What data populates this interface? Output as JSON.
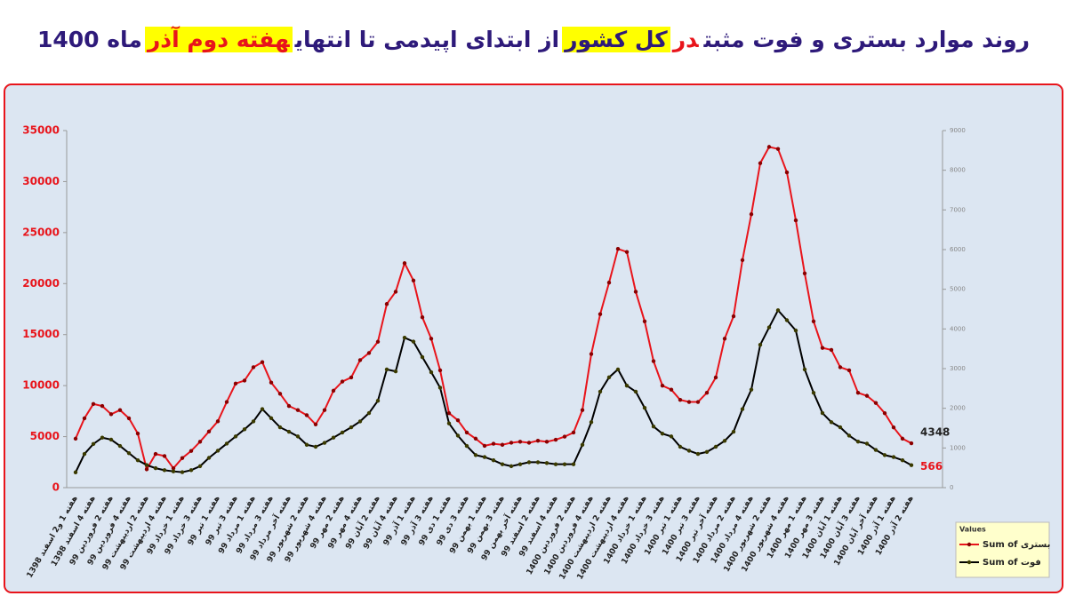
{
  "chart_data": {
    "type": "line",
    "title_parts": [
      "روند موارد بستری و فوت مثبت",
      "در",
      "کل کشور",
      "از ابتدای اپیدمی تا انتهای",
      "هفته دوم آذر",
      "ماه 1400"
    ],
    "categories": [
      "هفته 1 و2 اسفند 1398",
      null,
      "هفته 4 اسفند 1398",
      null,
      "هفته 2 فروردین 99",
      null,
      "هفته 4 فروردین 99",
      null,
      "هفته 2 اردیبهشت 99",
      null,
      "هفته 4 اردیبهشت 99",
      null,
      "هفته 1 خرداد 99",
      null,
      "هفته 3 خرداد 99",
      null,
      "هفته 1 تیر 99",
      null,
      "هفته 3 تیر 99",
      null,
      "هفته 1 مرداد 99",
      null,
      "هفته 3 مرداد 99",
      null,
      "هفته آخر مرداد 99",
      null,
      "هفته 2 شهریور 99",
      null,
      "هفته 4 شهریور 99",
      null,
      "هفته 2 مهر 99",
      null,
      "هفته 4 مهر 99",
      null,
      "هفته 2 آبان 99",
      null,
      "هفته 4 آبان 99",
      null,
      "هفته 1 آذر 99",
      null,
      "هفته 3 آذر 99",
      null,
      "هفته 1 دی 99",
      null,
      "هفته 3 دی 99",
      null,
      "هفته 1 بهمن 99",
      null,
      "هفته 3 بهمن 99",
      null,
      "هفته آخر بهمن 99",
      null,
      "هفته 2 اسفند 99",
      null,
      "هفته 4 اسفند 99",
      null,
      "هفته 2 فروردین 1400",
      null,
      "هفته 4 فروردین 1400",
      null,
      "هفته 2 اردیبهشت 1400",
      null,
      "هفته 4 اردیبهشت 1400",
      null,
      "هفته 1 خرداد 1400",
      null,
      "هفته 3 خرداد 1400",
      null,
      "هفته 1 تیر 1400",
      null,
      "هفته 3 تیر 1400",
      null,
      "هفته آخر تیر 1400",
      null,
      "هفته 2 مرداد 1400",
      null,
      "هفته 4 مرداد 1400",
      null,
      "هفته 2 شهریور 1400",
      null,
      "هفته 4 شهریور 1400",
      null,
      "هفته 1 مهر 1400",
      null,
      "هفته 3 مهر 1400",
      null,
      "هفته 1 آبان 1400",
      null,
      "هفته 3 آبان 1400",
      null,
      "هفته آخر آبان 1400",
      null,
      "هفته 1 آذر 1400",
      null,
      "هفته 2 آذر 1400"
    ],
    "series": [
      {
        "name": "Sum of بستری",
        "color": "#e8141b",
        "marker_color": "#8b0000",
        "values": [
          4800,
          6800,
          8200,
          8000,
          7200,
          7600,
          6800,
          5300,
          1800,
          3300,
          3100,
          1900,
          2900,
          3600,
          4500,
          5500,
          6500,
          8400,
          10200,
          10500,
          11800,
          12300,
          10300,
          9200,
          8000,
          7600,
          7100,
          6200,
          7600,
          9500,
          10400,
          10800,
          12500,
          13200,
          14300,
          18000,
          19200,
          22000,
          20300,
          16700,
          14600,
          11500,
          7300,
          6600,
          5400,
          4800,
          4100,
          4300,
          4200,
          4400,
          4500,
          4400,
          4600,
          4500,
          4700,
          5000,
          5400,
          7600,
          13100,
          17000,
          20100,
          23400,
          23100,
          19200,
          16300,
          12400,
          10000,
          9600,
          8600,
          8400,
          8400,
          9300,
          10800,
          14600,
          16800,
          22300,
          26800,
          31800,
          33400,
          33200,
          30900,
          26200,
          21000,
          16300,
          13700,
          13500,
          11800,
          11500,
          9300,
          9000,
          8300,
          7300,
          5900,
          4800,
          4348
        ]
      },
      {
        "name": "Sum of فوت",
        "color": "#000000",
        "marker_color": "#3a3a00",
        "axis": "y2",
        "values": [
          386,
          850,
          1100,
          1260,
          1210,
          1050,
          870,
          690,
          570,
          490,
          440,
          410,
          390,
          440,
          540,
          750,
          930,
          1110,
          1290,
          1470,
          1670,
          1980,
          1750,
          1520,
          1410,
          1290,
          1080,
          1030,
          1130,
          1260,
          1390,
          1520,
          1670,
          1880,
          2190,
          2980,
          2930,
          3780,
          3680,
          3290,
          2910,
          2520,
          1620,
          1310,
          1050,
          820,
          770,
          690,
          590,
          540,
          590,
          640,
          640,
          620,
          590,
          590,
          590,
          1080,
          1650,
          2420,
          2780,
          2980,
          2570,
          2420,
          2010,
          1540,
          1360,
          1290,
          1030,
          930,
          850,
          900,
          1030,
          1180,
          1410,
          1980,
          2470,
          3600,
          4040,
          4470,
          4220,
          3960,
          2980,
          2390,
          1880,
          1650,
          1520,
          1310,
          1160,
          1110,
          950,
          820,
          770,
          690,
          566
        ]
      }
    ],
    "ylim": [
      0,
      35000
    ],
    "yticks": [
      0,
      5000,
      10000,
      15000,
      20000,
      25000,
      30000,
      35000
    ],
    "y2lim": [
      0,
      9000
    ],
    "y2ticks": [
      0,
      1000,
      2000,
      3000,
      4000,
      5000,
      6000,
      7000,
      8000,
      9000
    ],
    "legend_title": "Values",
    "legend_position": "bottom-right",
    "grid": false
  }
}
